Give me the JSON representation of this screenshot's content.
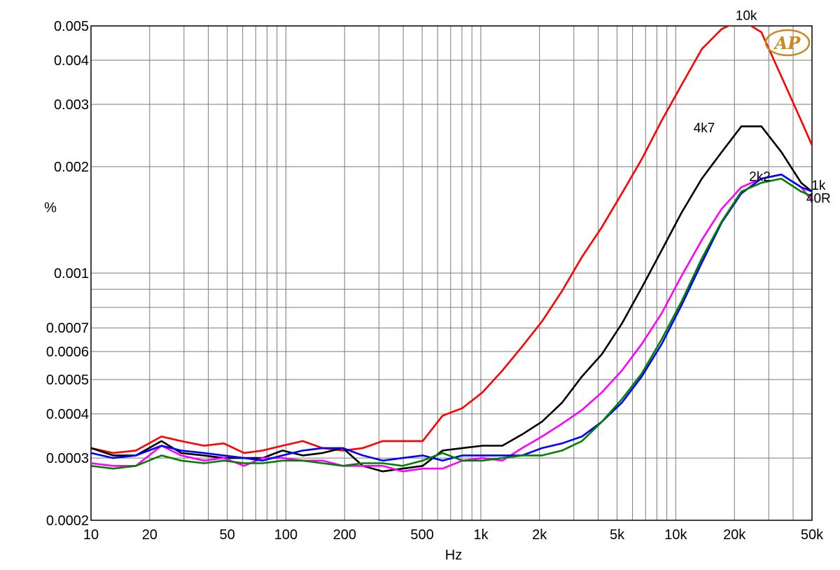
{
  "chart_data": {
    "type": "line",
    "xscale": "log",
    "yscale": "log",
    "xlim": [
      10,
      50000
    ],
    "ylim": [
      0.0002,
      0.005
    ],
    "xlabel": "Hz",
    "ylabel": "%",
    "grid": true,
    "x_ticks": [
      {
        "value": 10,
        "label": "10"
      },
      {
        "value": 20,
        "label": "20"
      },
      {
        "value": 50,
        "label": "50"
      },
      {
        "value": 100,
        "label": "100"
      },
      {
        "value": 200,
        "label": "200"
      },
      {
        "value": 500,
        "label": "500"
      },
      {
        "value": 1000,
        "label": "1k"
      },
      {
        "value": 2000,
        "label": "2k"
      },
      {
        "value": 5000,
        "label": "5k"
      },
      {
        "value": 10000,
        "label": "10k"
      },
      {
        "value": 20000,
        "label": "20k"
      },
      {
        "value": 50000,
        "label": "50k"
      }
    ],
    "y_ticks": [
      {
        "value": 0.005,
        "label": "0.005"
      },
      {
        "value": 0.004,
        "label": "0.004"
      },
      {
        "value": 0.003,
        "label": "0.003"
      },
      {
        "value": 0.002,
        "label": "0.002"
      },
      {
        "value": 0.001,
        "label": "0.001"
      },
      {
        "value": 0.0007,
        "label": "0.0007"
      },
      {
        "value": 0.0006,
        "label": "0.0006"
      },
      {
        "value": 0.0005,
        "label": "0.0005"
      },
      {
        "value": 0.0004,
        "label": "0.0004"
      },
      {
        "value": 0.0003,
        "label": "0.0003"
      },
      {
        "value": 0.0002,
        "label": "0.0002"
      }
    ],
    "y_gridlines": [
      0.005,
      0.004,
      0.003,
      0.002,
      0.001,
      0.0009,
      0.0008,
      0.0007,
      0.0006,
      0.0005,
      0.0004,
      0.0003,
      0.0002
    ],
    "x_gridlines": [
      10,
      20,
      30,
      40,
      50,
      60,
      70,
      80,
      90,
      100,
      200,
      300,
      400,
      500,
      600,
      700,
      800,
      900,
      1000,
      2000,
      3000,
      4000,
      5000,
      6000,
      7000,
      8000,
      9000,
      10000,
      20000,
      30000,
      40000,
      50000
    ],
    "series": [
      {
        "name": "10k",
        "color": "#ff0000",
        "x": [
          10,
          13,
          17,
          23,
          29,
          38,
          48,
          61,
          76,
          96,
          122,
          154,
          196,
          248,
          314,
          397,
          503,
          636,
          804,
          1020,
          1290,
          1630,
          2060,
          2610,
          3300,
          4180,
          5290,
          6690,
          8470,
          10700,
          13600,
          17200,
          21700,
          27500,
          34800,
          44000,
          50000
        ],
        "y": [
          0.00032,
          0.00031,
          0.000315,
          0.000345,
          0.000335,
          0.000325,
          0.00033,
          0.00031,
          0.000315,
          0.000325,
          0.000335,
          0.00032,
          0.000315,
          0.00032,
          0.000335,
          0.000335,
          0.000335,
          0.000395,
          0.000415,
          0.00046,
          0.00053,
          0.00062,
          0.00073,
          0.00089,
          0.00111,
          0.00135,
          0.00168,
          0.0021,
          0.0027,
          0.0034,
          0.0043,
          0.0049,
          0.0052,
          0.0048,
          0.0036,
          0.0027,
          0.0023
        ]
      },
      {
        "name": "4k7",
        "color": "#000000",
        "x": [
          10,
          13,
          17,
          23,
          29,
          38,
          48,
          61,
          76,
          96,
          122,
          154,
          196,
          248,
          314,
          397,
          503,
          636,
          804,
          1020,
          1290,
          1630,
          2060,
          2610,
          3300,
          4180,
          5290,
          6690,
          8470,
          10700,
          13600,
          17200,
          21700,
          27500,
          34800,
          44000,
          50000
        ],
        "y": [
          0.00032,
          0.000305,
          0.000305,
          0.000335,
          0.00031,
          0.000305,
          0.0003,
          0.0003,
          0.0003,
          0.000315,
          0.000305,
          0.00031,
          0.00032,
          0.000285,
          0.000275,
          0.00028,
          0.000285,
          0.000315,
          0.00032,
          0.000325,
          0.000325,
          0.00035,
          0.00038,
          0.00043,
          0.00051,
          0.00059,
          0.00072,
          0.00091,
          0.00116,
          0.00148,
          0.00185,
          0.0022,
          0.0026,
          0.0026,
          0.0022,
          0.0018,
          0.0017
        ]
      },
      {
        "name": "2k2",
        "color": "#ff00ff",
        "x": [
          10,
          13,
          17,
          23,
          29,
          38,
          48,
          61,
          76,
          96,
          122,
          154,
          196,
          248,
          314,
          397,
          503,
          636,
          804,
          1020,
          1290,
          1630,
          2060,
          2610,
          3300,
          4180,
          5290,
          6690,
          8470,
          10700,
          13600,
          17200,
          21700,
          27500,
          34800,
          44000,
          50000
        ],
        "y": [
          0.00029,
          0.000285,
          0.000285,
          0.000325,
          0.000305,
          0.000295,
          0.0003,
          0.000285,
          0.0003,
          0.0003,
          0.000295,
          0.000295,
          0.000285,
          0.000285,
          0.000285,
          0.000275,
          0.00028,
          0.00028,
          0.000295,
          0.0003,
          0.000295,
          0.00032,
          0.000345,
          0.000375,
          0.00041,
          0.00046,
          0.00053,
          0.00063,
          0.00077,
          0.00098,
          0.00124,
          0.00152,
          0.00175,
          0.00185,
          0.0019,
          0.00175,
          0.0016
        ]
      },
      {
        "name": "1k",
        "color": "#0000ff",
        "x": [
          10,
          13,
          17,
          23,
          29,
          38,
          48,
          61,
          76,
          96,
          122,
          154,
          196,
          248,
          314,
          397,
          503,
          636,
          804,
          1020,
          1290,
          1630,
          2060,
          2610,
          3300,
          4180,
          5290,
          6690,
          8470,
          10700,
          13600,
          17200,
          21700,
          27500,
          34800,
          44000,
          50000
        ],
        "y": [
          0.00031,
          0.0003,
          0.000305,
          0.000325,
          0.000315,
          0.00031,
          0.000305,
          0.0003,
          0.000295,
          0.000305,
          0.000315,
          0.00032,
          0.00032,
          0.000305,
          0.000295,
          0.0003,
          0.000305,
          0.000295,
          0.000305,
          0.000305,
          0.000305,
          0.000305,
          0.00032,
          0.00033,
          0.000345,
          0.00038,
          0.00043,
          0.00051,
          0.00063,
          0.00081,
          0.00107,
          0.00139,
          0.00168,
          0.00185,
          0.0019,
          0.00175,
          0.0017
        ]
      },
      {
        "name": "40R",
        "color": "#008000",
        "x": [
          10,
          13,
          17,
          23,
          29,
          38,
          48,
          61,
          76,
          96,
          122,
          154,
          196,
          248,
          314,
          397,
          503,
          636,
          804,
          1020,
          1290,
          1630,
          2060,
          2610,
          3300,
          4180,
          5290,
          6690,
          8470,
          10700,
          13600,
          17200,
          21700,
          27500,
          34800,
          44000,
          50000
        ],
        "y": [
          0.000285,
          0.00028,
          0.000285,
          0.000305,
          0.000295,
          0.00029,
          0.000295,
          0.00029,
          0.00029,
          0.000295,
          0.000295,
          0.00029,
          0.000285,
          0.00029,
          0.00029,
          0.000285,
          0.000295,
          0.00031,
          0.000295,
          0.000295,
          0.0003,
          0.000305,
          0.000305,
          0.000315,
          0.000335,
          0.00038,
          0.00044,
          0.00052,
          0.00065,
          0.00083,
          0.0011,
          0.0014,
          0.0017,
          0.0018,
          0.00185,
          0.0017,
          0.00165
        ]
      }
    ],
    "curve_labels": [
      {
        "text": "10k",
        "x": 23000,
        "y": 0.0052
      },
      {
        "text": "4k7",
        "x": 14000,
        "y": 0.0025
      },
      {
        "text": "2k2",
        "x": 27000,
        "y": 0.00182
      },
      {
        "text": "1k",
        "x": 54000,
        "y": 0.00172
      },
      {
        "text": "40R",
        "x": 54000,
        "y": 0.00158
      }
    ],
    "logo": {
      "text": "AP",
      "color": "#c98a1a"
    }
  }
}
